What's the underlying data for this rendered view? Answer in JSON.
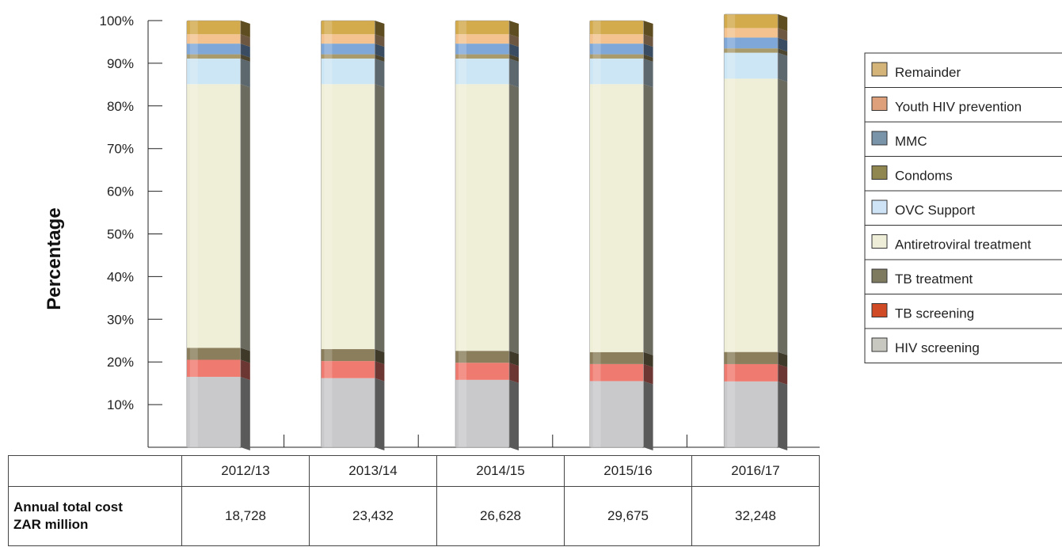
{
  "chart_data": {
    "type": "bar",
    "stacked": true,
    "percent": true,
    "ylabel": "Percentage",
    "ylim": [
      0,
      100
    ],
    "yticks": [
      "10%",
      "20%",
      "30%",
      "40%",
      "50%",
      "60%",
      "70%",
      "80%",
      "90%",
      "100%"
    ],
    "categories": [
      "2012/13",
      "2013/14",
      "2014/15",
      "2015/16",
      "2016/17"
    ],
    "series": [
      {
        "name": "HIV screening",
        "color": "#c9c9cb",
        "values": [
          16.5,
          16.2,
          15.8,
          15.5,
          15.2
        ]
      },
      {
        "name": "TB screening",
        "color": "#ef7a70",
        "values": [
          4.0,
          4.0,
          4.0,
          4.0,
          4.0
        ]
      },
      {
        "name": "TB treatment",
        "color": "#8a7e5c",
        "values": [
          2.8,
          2.8,
          2.8,
          2.8,
          2.8
        ]
      },
      {
        "name": "Antiretroviral treatment",
        "color": "#efeed6",
        "values": [
          61.8,
          62.1,
          62.5,
          62.8,
          63.1
        ]
      },
      {
        "name": "OVC Support",
        "color": "#cde6f5",
        "values": [
          6.0,
          6.0,
          6.0,
          6.0,
          6.0
        ]
      },
      {
        "name": "Condoms",
        "color": "#a89a6b",
        "values": [
          1.0,
          1.0,
          1.0,
          1.0,
          1.0
        ]
      },
      {
        "name": "MMC",
        "color": "#7fa8d8",
        "values": [
          2.5,
          2.5,
          2.5,
          2.5,
          2.5
        ]
      },
      {
        "name": "Youth HIV prevention",
        "color": "#f3c28f",
        "values": [
          2.2,
          2.2,
          2.2,
          2.2,
          2.2
        ]
      },
      {
        "name": "Remainder",
        "color": "#d3aa4c",
        "values": [
          3.2,
          3.2,
          3.2,
          3.2,
          3.2
        ]
      }
    ],
    "legend": {
      "position": "right",
      "entries": [
        {
          "label": "Remainder",
          "swatch": "#d4b478"
        },
        {
          "label": "Youth HIV prevention",
          "swatch": "#dea07a"
        },
        {
          "label": "MMC",
          "swatch": "#7993a8"
        },
        {
          "label": "Condoms",
          "swatch": "#8f8650"
        },
        {
          "label": "OVC Support",
          "swatch": "#cfe3f7"
        },
        {
          "label": "Antiretroviral treatment",
          "swatch": "#eeeed8"
        },
        {
          "label": "TB treatment",
          "swatch": "#7e7a60"
        },
        {
          "label": "TB screening",
          "swatch": "#cf4a25"
        },
        {
          "label": "HIV screening",
          "swatch": "#c8c8c0"
        }
      ]
    }
  },
  "table": {
    "header": [
      "2012/13",
      "2013/14",
      "2014/15",
      "2015/16",
      "2016/17"
    ],
    "row_label_line1": "Annual total cost",
    "row_label_line2": "ZAR million",
    "values": [
      "18,728",
      "23,432",
      "26,628",
      "29,675",
      "32,248"
    ]
  }
}
